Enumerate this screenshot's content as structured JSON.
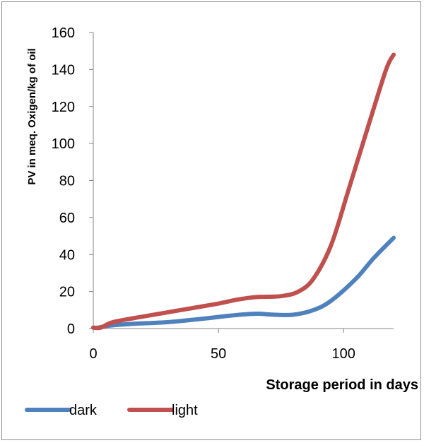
{
  "chart_data": {
    "type": "line",
    "title": "",
    "xlabel": "Storage period in days",
    "ylabel": "PV in meq. Oxigen/kg of oil",
    "xlim": [
      0,
      120
    ],
    "ylim": [
      0,
      160
    ],
    "x_ticks": [
      0,
      50,
      100
    ],
    "y_ticks": [
      0,
      20,
      40,
      60,
      80,
      100,
      120,
      140,
      160
    ],
    "grid": false,
    "legend_position": "bottom-left",
    "series": [
      {
        "name": "dark",
        "color": "#4f81bd",
        "points": [
          [
            0,
            0.5
          ],
          [
            2,
            0.5
          ],
          [
            6,
            1.5
          ],
          [
            15,
            2.5
          ],
          [
            30,
            3.5
          ],
          [
            45,
            5.5
          ],
          [
            55,
            7
          ],
          [
            65,
            8
          ],
          [
            72,
            7.5
          ],
          [
            80,
            7.5
          ],
          [
            88,
            10
          ],
          [
            95,
            15
          ],
          [
            105,
            27
          ],
          [
            112,
            38
          ],
          [
            120,
            49
          ]
        ]
      },
      {
        "name": "light",
        "color": "#c0504d",
        "points": [
          [
            0,
            0.5
          ],
          [
            3,
            0.5
          ],
          [
            8,
            3.5
          ],
          [
            20,
            6.5
          ],
          [
            35,
            10
          ],
          [
            50,
            13.5
          ],
          [
            57,
            15.5
          ],
          [
            65,
            17
          ],
          [
            75,
            17.5
          ],
          [
            82,
            20
          ],
          [
            88,
            27
          ],
          [
            95,
            45
          ],
          [
            102,
            75
          ],
          [
            110,
            110
          ],
          [
            117,
            140
          ],
          [
            120,
            148
          ]
        ]
      }
    ]
  }
}
